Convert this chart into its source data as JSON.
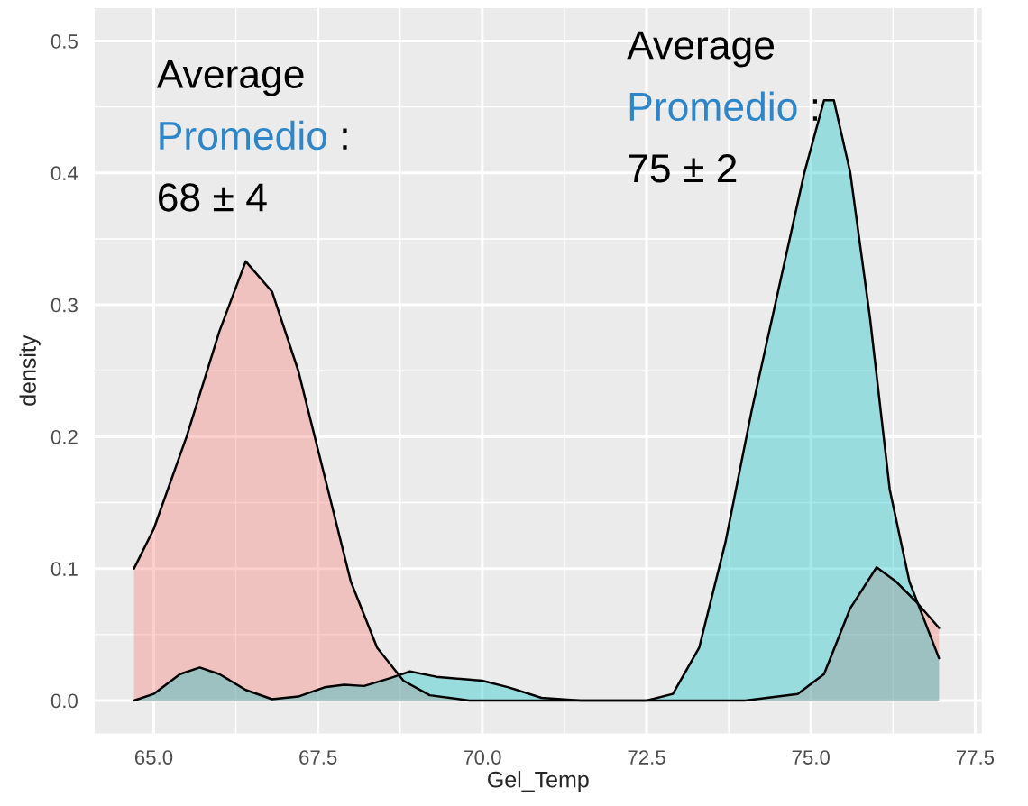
{
  "chart_data": {
    "type": "area",
    "xlabel": "Gel_Temp",
    "ylabel": "density",
    "annotations": [
      "Average\nPromedio :\n68 ± 4",
      "Average\nPromedio :\n75 ± 2"
    ],
    "series": [
      {
        "color": "#f8766d",
        "x": [
          64.7,
          65.0,
          65.5,
          66.0,
          66.4,
          66.8,
          67.2,
          67.6,
          68.0,
          68.4,
          68.8,
          69.2,
          69.8,
          70.5,
          72.0,
          74.0,
          74.8,
          75.2,
          75.6,
          76.0,
          76.3,
          76.6,
          76.95
        ],
        "values": [
          0.1,
          0.13,
          0.2,
          0.28,
          0.333,
          0.31,
          0.25,
          0.17,
          0.09,
          0.04,
          0.015,
          0.004,
          0.0,
          0.0,
          0.0,
          0.0,
          0.005,
          0.02,
          0.07,
          0.101,
          0.09,
          0.075,
          0.055
        ]
      },
      {
        "color": "#00bfc4",
        "x": [
          64.7,
          65.0,
          65.4,
          65.7,
          66.0,
          66.4,
          66.8,
          67.2,
          67.6,
          67.9,
          68.2,
          68.6,
          68.9,
          69.3,
          70.0,
          70.4,
          70.9,
          71.5,
          72.5,
          72.9,
          73.3,
          73.7,
          74.1,
          74.5,
          74.9,
          75.2,
          75.35,
          75.6,
          75.9,
          76.2,
          76.5,
          76.95
        ],
        "values": [
          0.0,
          0.005,
          0.02,
          0.025,
          0.02,
          0.008,
          0.001,
          0.003,
          0.01,
          0.012,
          0.011,
          0.017,
          0.022,
          0.018,
          0.015,
          0.01,
          0.002,
          0.0,
          0.0,
          0.005,
          0.04,
          0.12,
          0.22,
          0.31,
          0.4,
          0.455,
          0.455,
          0.4,
          0.29,
          0.16,
          0.09,
          0.032
        ]
      }
    ],
    "xlim": [
      64.1,
      77.6
    ],
    "ylim": [
      -0.025,
      0.525
    ],
    "xticks": [
      {
        "value": 65,
        "label": "65.0"
      },
      67.5,
      {
        "value": 70,
        "label": "70.0"
      },
      72.5,
      {
        "value": 75,
        "label": "75.0"
      },
      77.5
    ],
    "yticks": [
      {
        "value": 0,
        "label": "0.0"
      },
      0.1,
      0.2,
      0.3,
      0.4,
      0.5
    ],
    "grid": true,
    "legend": false
  }
}
